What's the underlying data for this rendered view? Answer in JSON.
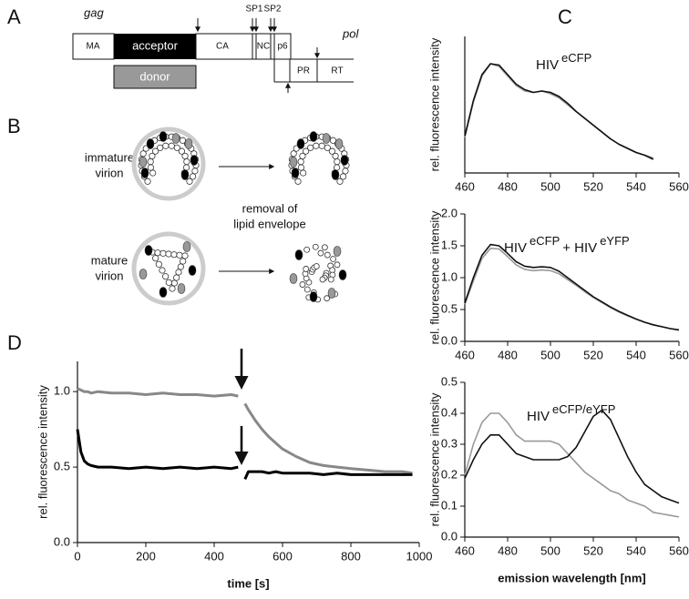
{
  "panel_labels": [
    "A",
    "B",
    "C",
    "D"
  ],
  "diagram": {
    "gene_map": {
      "gag_label": "gag",
      "pol_label": "pol",
      "MA": "MA",
      "acceptor": "acceptor",
      "CA": "CA",
      "SP1": "SP1",
      "SP2": "SP2",
      "NC": "NC",
      "p6": "p6",
      "PR": "PR",
      "RT": "RT",
      "donor": "donor"
    },
    "virions": {
      "immature": [
        "immature",
        "virion"
      ],
      "mature": [
        "mature",
        "virion"
      ],
      "process": [
        "removal of",
        "lipid envelope"
      ]
    }
  },
  "chart_data": [
    {
      "type": "line",
      "annotation": [
        {
          "text": "HIV",
          "sup": false
        },
        {
          "text": "eCFP",
          "sup": true
        }
      ],
      "ylabel": "rel. fluorescence intensity",
      "x": [
        460,
        464,
        468,
        472,
        476,
        480,
        484,
        488,
        492,
        496,
        500,
        504,
        508,
        512,
        516,
        520,
        524,
        528,
        532,
        536,
        540,
        544,
        548
      ],
      "series": [
        {
          "color": "#999999",
          "values": [
            0.26,
            0.52,
            0.71,
            0.8,
            0.78,
            0.71,
            0.64,
            0.6,
            0.59,
            0.6,
            0.58,
            0.55,
            0.5,
            0.45,
            0.4,
            0.35,
            0.3,
            0.25,
            0.21,
            0.18,
            0.15,
            0.13,
            0.11
          ]
        },
        {
          "color": "#111111",
          "values": [
            0.27,
            0.53,
            0.72,
            0.8,
            0.79,
            0.72,
            0.65,
            0.61,
            0.59,
            0.6,
            0.59,
            0.56,
            0.51,
            0.45,
            0.4,
            0.35,
            0.3,
            0.25,
            0.21,
            0.18,
            0.15,
            0.13,
            0.1
          ]
        }
      ],
      "xlim": [
        460,
        560
      ],
      "xticks": [
        460,
        480,
        500,
        520,
        540,
        560
      ],
      "ylim": [
        0,
        1
      ],
      "yticks": []
    },
    {
      "type": "line",
      "annotation": [
        {
          "text": "HIV",
          "sup": false
        },
        {
          "text": "eCFP",
          "sup": true
        },
        {
          "text": "+ HIV",
          "sup": false
        },
        {
          "text": "eYFP",
          "sup": true
        }
      ],
      "ylabel": "rel. fluorescence intensity",
      "x": [
        460,
        464,
        468,
        472,
        476,
        480,
        484,
        488,
        492,
        496,
        500,
        504,
        508,
        512,
        516,
        520,
        524,
        528,
        532,
        536,
        540,
        544,
        548,
        552,
        556,
        560
      ],
      "series": [
        {
          "color": "#999999",
          "values": [
            0.58,
            0.95,
            1.3,
            1.46,
            1.45,
            1.33,
            1.2,
            1.13,
            1.11,
            1.12,
            1.11,
            1.06,
            0.97,
            0.88,
            0.78,
            0.69,
            0.61,
            0.53,
            0.46,
            0.4,
            0.35,
            0.3,
            0.26,
            0.23,
            0.2,
            0.18
          ]
        },
        {
          "color": "#111111",
          "values": [
            0.6,
            1.0,
            1.35,
            1.52,
            1.5,
            1.38,
            1.25,
            1.18,
            1.16,
            1.17,
            1.16,
            1.1,
            1.0,
            0.9,
            0.8,
            0.7,
            0.62,
            0.54,
            0.47,
            0.41,
            0.35,
            0.3,
            0.26,
            0.23,
            0.2,
            0.18
          ]
        }
      ],
      "xlim": [
        460,
        560
      ],
      "xticks": [
        460,
        480,
        500,
        520,
        540,
        560
      ],
      "ylim": [
        0,
        2
      ],
      "yticks": [
        {
          "value": 0,
          "label": "0.0"
        },
        0.5,
        {
          "value": 1,
          "label": "1.0"
        },
        1.5,
        {
          "value": 2,
          "label": "2.0"
        }
      ]
    },
    {
      "type": "line",
      "annotation": [
        {
          "text": "HIV",
          "sup": false
        },
        {
          "text": "eCFP/eYFP",
          "sup": true
        }
      ],
      "ylabel": "rel. fluorescence intensity",
      "xlabel": "emission wavelength [nm]",
      "x": [
        460,
        464,
        468,
        472,
        476,
        480,
        484,
        488,
        492,
        496,
        500,
        504,
        508,
        512,
        516,
        520,
        524,
        528,
        532,
        536,
        540,
        544,
        548,
        552,
        556,
        560
      ],
      "series": [
        {
          "color": "#999999",
          "values": [
            0.2,
            0.3,
            0.37,
            0.4,
            0.4,
            0.37,
            0.33,
            0.31,
            0.31,
            0.31,
            0.31,
            0.3,
            0.27,
            0.24,
            0.21,
            0.19,
            0.17,
            0.15,
            0.14,
            0.12,
            0.11,
            0.1,
            0.08,
            0.075,
            0.07,
            0.065
          ]
        },
        {
          "color": "#111111",
          "values": [
            0.19,
            0.25,
            0.3,
            0.33,
            0.33,
            0.3,
            0.27,
            0.26,
            0.25,
            0.25,
            0.25,
            0.25,
            0.26,
            0.29,
            0.34,
            0.39,
            0.41,
            0.38,
            0.32,
            0.26,
            0.21,
            0.17,
            0.15,
            0.13,
            0.12,
            0.11
          ]
        }
      ],
      "xlim": [
        460,
        560
      ],
      "xticks": [
        460,
        480,
        500,
        520,
        540,
        560
      ],
      "ylim": [
        0,
        0.5
      ],
      "yticks": [
        {
          "value": 0,
          "label": "0.0"
        },
        0.1,
        0.2,
        0.3,
        0.4,
        0.5
      ]
    },
    {
      "type": "line",
      "ylabel": "rel. fluorescence intensity",
      "xlabel": "time [s]",
      "x": [
        0,
        10,
        20,
        30,
        40,
        60,
        100,
        150,
        200,
        250,
        300,
        350,
        400,
        450,
        470,
        480,
        490,
        500,
        520,
        540,
        560,
        580,
        600,
        640,
        680,
        720,
        760,
        800,
        850,
        900,
        950,
        980
      ],
      "series": [
        {
          "color": "#888888",
          "values": [
            1.02,
            1.01,
            1.0,
            1.0,
            0.99,
            1.0,
            0.99,
            0.99,
            0.98,
            0.99,
            0.98,
            0.98,
            0.97,
            0.98,
            0.97,
            null,
            0.92,
            0.88,
            0.81,
            0.75,
            0.7,
            0.66,
            0.62,
            0.57,
            0.53,
            0.51,
            0.5,
            0.49,
            0.48,
            0.47,
            0.47,
            0.46
          ]
        },
        {
          "color": "#000000",
          "values": [
            0.75,
            0.6,
            0.54,
            0.52,
            0.51,
            0.5,
            0.5,
            0.49,
            0.5,
            0.49,
            0.5,
            0.49,
            0.5,
            0.49,
            0.5,
            null,
            0.42,
            0.47,
            0.47,
            0.47,
            0.46,
            0.47,
            0.46,
            0.46,
            0.46,
            0.45,
            0.46,
            0.45,
            0.45,
            0.45,
            0.45,
            0.45
          ]
        }
      ],
      "xlim": [
        0,
        1000
      ],
      "xticks": [
        0,
        200,
        400,
        600,
        800,
        1000
      ],
      "ylim": [
        0,
        1.2
      ],
      "yticks": [
        {
          "value": 0,
          "label": "0.0"
        },
        0.5,
        {
          "value": 1,
          "label": "1.0"
        }
      ]
    }
  ]
}
